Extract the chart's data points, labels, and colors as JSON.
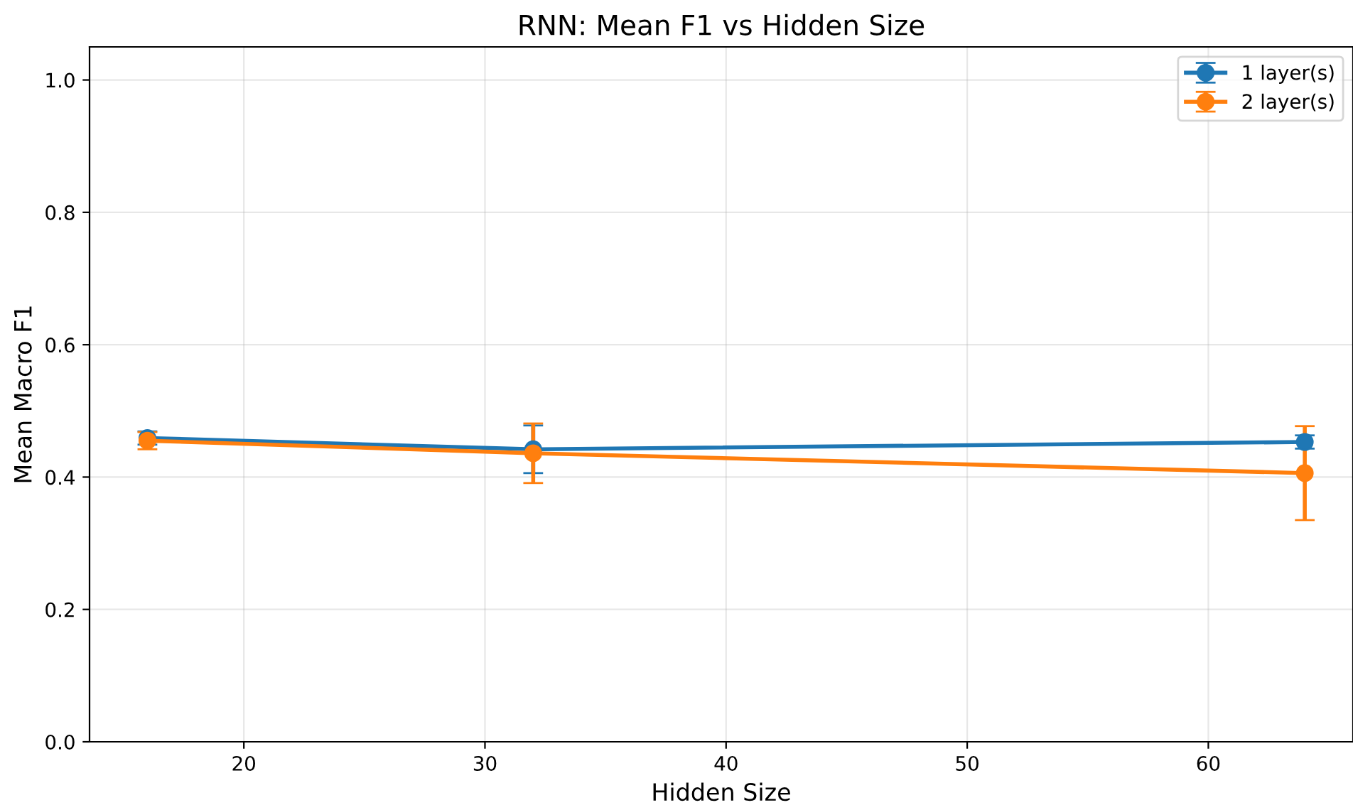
{
  "chart_data": {
    "type": "line",
    "title": "RNN: Mean F1 vs Hidden Size",
    "xlabel": "Hidden Size",
    "ylabel": "Mean Macro F1",
    "x": [
      16,
      32,
      64
    ],
    "series": [
      {
        "name": "1 layer(s)",
        "color": "#1f77b4",
        "values": [
          0.459,
          0.442,
          0.453
        ],
        "errors": [
          0.01,
          0.036,
          0.01
        ]
      },
      {
        "name": "2 layer(s)",
        "color": "#ff7f0e",
        "values": [
          0.455,
          0.436,
          0.406
        ],
        "errors": [
          0.013,
          0.045,
          0.071
        ]
      }
    ],
    "xlim": [
      13.6,
      66.0
    ],
    "xticks": [
      20,
      30,
      40,
      50,
      60
    ],
    "ylim": [
      0,
      1.05
    ],
    "yticks": [
      {
        "value": 0,
        "label": "0.0"
      },
      {
        "value": 0.2,
        "label": "0.2"
      },
      {
        "value": 0.4,
        "label": "0.4"
      },
      {
        "value": 0.6,
        "label": "0.6"
      },
      {
        "value": 0.8,
        "label": "0.8"
      },
      {
        "value": 1,
        "label": "1.0"
      }
    ],
    "grid": true,
    "legend": "top right",
    "marker": "circle",
    "line_style": "solid"
  }
}
